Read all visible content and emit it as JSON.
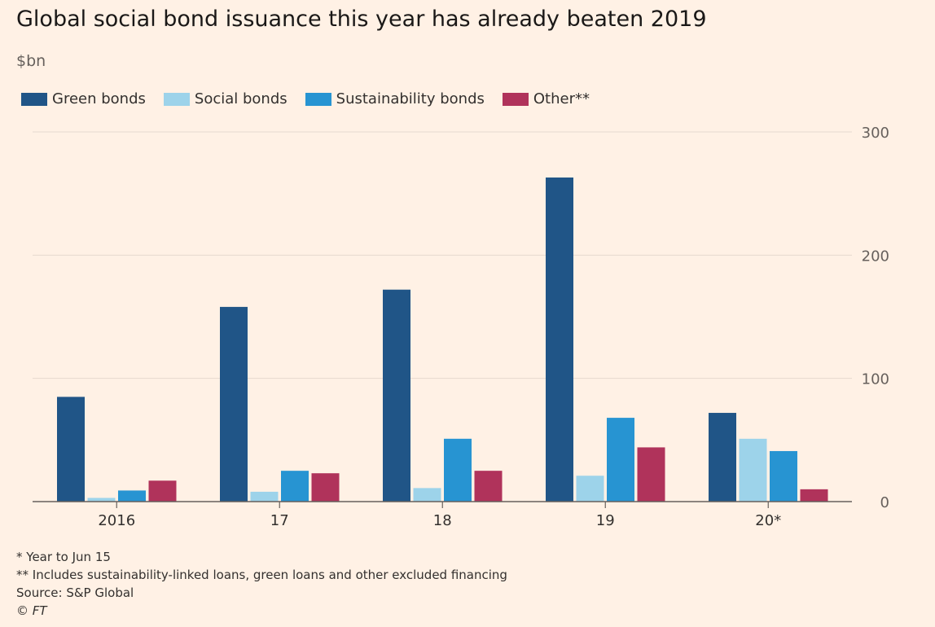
{
  "title": "Global social bond issuance this year has already beaten 2019",
  "unit_label": "$bn",
  "colors": {
    "background": "#fff1e5",
    "gridline": "#e6d9ce",
    "axis": "#66605c",
    "text": "#33302e"
  },
  "chart_data": {
    "type": "bar",
    "categories": [
      "2016",
      "17",
      "18",
      "19",
      "20*"
    ],
    "series": [
      {
        "name": "Green bonds",
        "color": "#205587",
        "values": [
          85,
          158,
          172,
          263,
          72
        ]
      },
      {
        "name": "Social bonds",
        "color": "#9dd3ea",
        "values": [
          3,
          8,
          11,
          21,
          51
        ]
      },
      {
        "name": "Sustainability bonds",
        "color": "#2794d2",
        "values": [
          9,
          25,
          51,
          68,
          41
        ]
      },
      {
        "name": "Other**",
        "color": "#b0335b",
        "values": [
          17,
          23,
          25,
          44,
          10
        ]
      }
    ],
    "y_ticks": [
      "0",
      "100",
      "200",
      "300"
    ],
    "ylim": [
      0,
      300
    ],
    "y_axis_side": "right",
    "grid": true,
    "legend_position": "top-left"
  },
  "footnotes": [
    "* Year to Jun 15",
    "** Includes sustainability-linked loans, green loans and other excluded financing",
    "Source: S&P Global"
  ],
  "credit": "© FT"
}
